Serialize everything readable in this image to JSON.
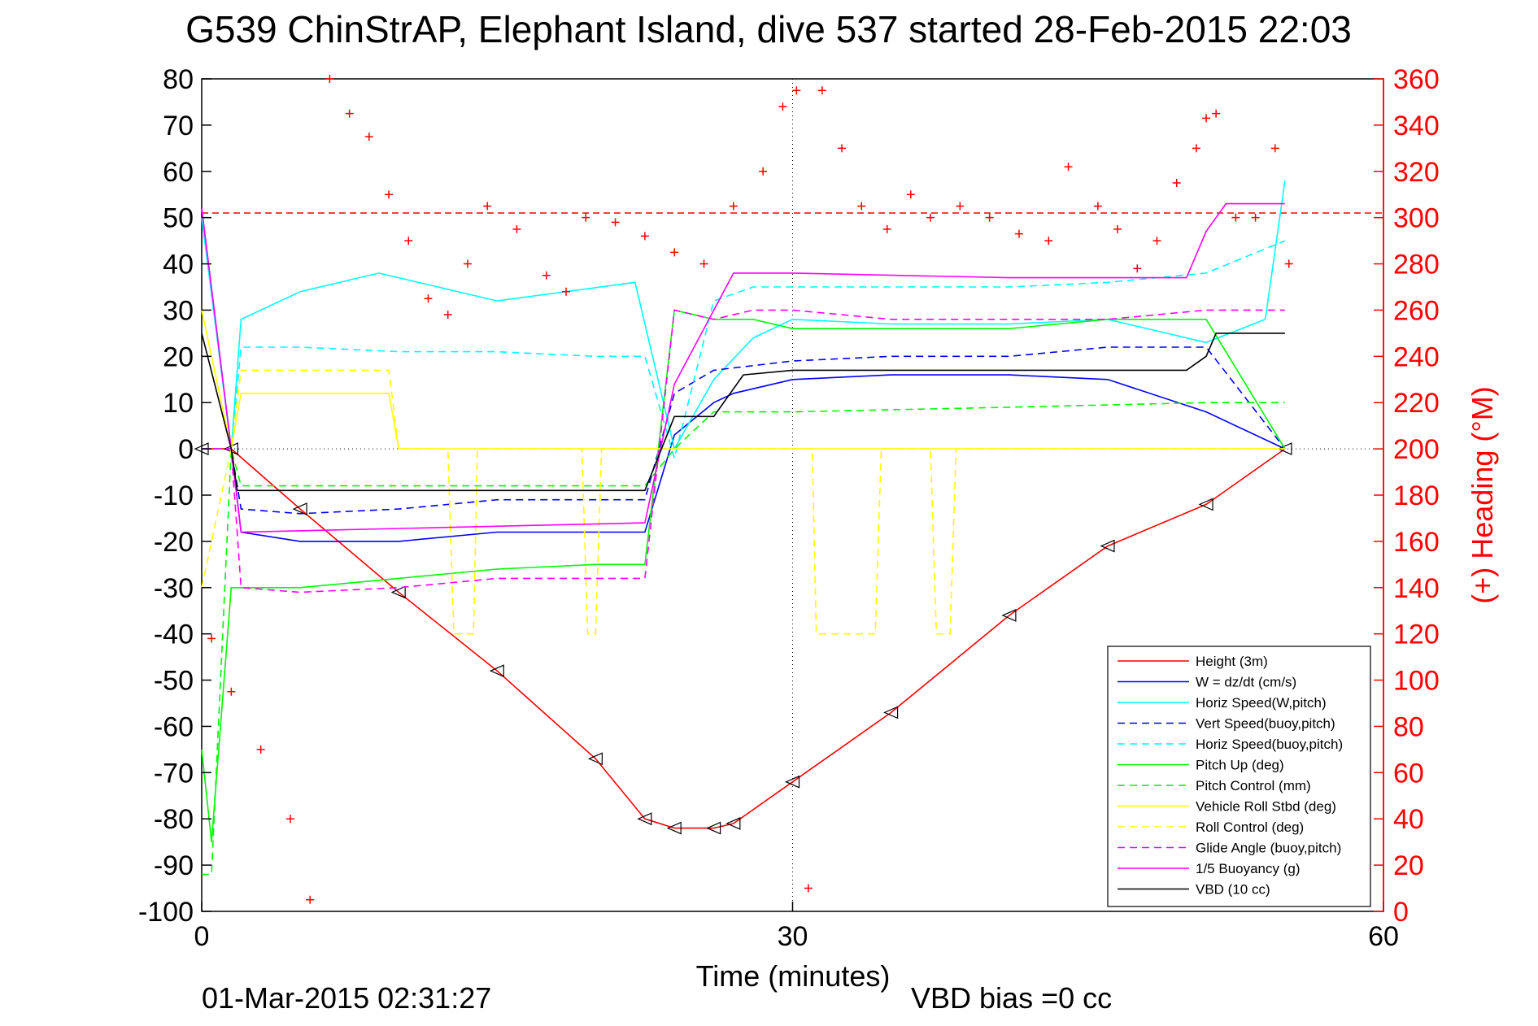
{
  "chart_data": {
    "type": "line",
    "title": "G539 ChinStrAP, Elephant Island, dive 537 started 28-Feb-2015 22:03",
    "xlabel": "Time (minutes)",
    "ylabel_right": "(+) Heading (°M)",
    "footer_left": "01-Mar-2015 02:31:27",
    "footer_center": "VBD bias =0 cc",
    "xlim": [
      0,
      60
    ],
    "ylim": [
      -100,
      80
    ],
    "ylim_right": [
      0,
      360
    ],
    "x_ticks": [
      "0",
      "30",
      "60"
    ],
    "y_ticks": [
      "80",
      "70",
      "60",
      "50",
      "40",
      "30",
      "20",
      "10",
      "0",
      "-10",
      "-20",
      "-30",
      "-40",
      "-50",
      "-60",
      "-70",
      "-80",
      "-90",
      "-100"
    ],
    "y_ticks_right": [
      "360",
      "340",
      "320",
      "300",
      "280",
      "260",
      "240",
      "220",
      "200",
      "180",
      "160",
      "140",
      "120",
      "100",
      "80",
      "60",
      "40",
      "20",
      "0"
    ],
    "heading_reference": 302,
    "colors": {
      "axis_right": "#ff0000",
      "heading": "#ff0000"
    },
    "legend": {
      "position": "bottom-right"
    },
    "series": [
      {
        "name": "Height (3m)",
        "color": "#ff0000",
        "style": "solid",
        "x": [
          0,
          1.5,
          5,
          10,
          15,
          20,
          22.5,
          24,
          26,
          27,
          30,
          35,
          41,
          46,
          51,
          55
        ],
        "y": [
          0,
          0,
          -13,
          -31,
          -48,
          -67,
          -80,
          -82,
          -82,
          -81,
          -72,
          -57,
          -36,
          -21,
          -12,
          0
        ]
      },
      {
        "name": "W = dz/dt (cm/s)",
        "color": "#0000ff",
        "style": "solid",
        "x": [
          0,
          1.5,
          2,
          5,
          10,
          15,
          20,
          22.5,
          24,
          26,
          27,
          30,
          35,
          41,
          46,
          51,
          55
        ],
        "y": [
          52,
          0,
          -18,
          -20,
          -20,
          -18,
          -18,
          -18,
          3,
          10,
          12,
          15,
          16,
          16,
          15,
          8,
          0
        ]
      },
      {
        "name": "Horiz Speed(W,pitch)",
        "color": "#00ffff",
        "style": "solid",
        "x": [
          0,
          1.5,
          2,
          5,
          9,
          15,
          22,
          24,
          26,
          28,
          30,
          35,
          41,
          46,
          51,
          54,
          55
        ],
        "y": [
          50,
          0,
          28,
          34,
          38,
          32,
          36,
          0,
          15,
          24,
          28,
          27,
          27,
          28,
          23,
          28,
          58
        ]
      },
      {
        "name": "Vert Speed(buoy,pitch)",
        "color": "#0000ff",
        "style": "dashed",
        "x": [
          0,
          1.5,
          2,
          5,
          10,
          15,
          20,
          22.5,
          24,
          26,
          28,
          30,
          35,
          41,
          46,
          51,
          55
        ],
        "y": [
          0,
          0,
          -13,
          -14,
          -13,
          -11,
          -11,
          -11,
          12,
          17,
          18,
          19,
          20,
          20,
          22,
          22,
          0
        ]
      },
      {
        "name": "Horiz Speed(buoy,pitch)",
        "color": "#00ffff",
        "style": "dashed",
        "x": [
          0,
          1.5,
          2,
          5,
          10,
          15,
          20,
          22.5,
          24,
          26,
          28,
          30,
          35,
          41,
          46,
          51,
          55
        ],
        "y": [
          0,
          0,
          22,
          22,
          21,
          21,
          20,
          20,
          -2,
          32,
          35,
          35,
          35,
          35,
          36,
          38,
          45
        ]
      },
      {
        "name": "Pitch Up (deg)",
        "color": "#00ff00",
        "style": "solid",
        "x": [
          0,
          0.5,
          1.5,
          2,
          5,
          10,
          15,
          20,
          22.5,
          24,
          26,
          28,
          30,
          35,
          41,
          46,
          51,
          55
        ],
        "y": [
          -65,
          -85,
          -30,
          -30,
          -30,
          -28,
          -26,
          -25,
          -25,
          30,
          28,
          28,
          26,
          26,
          26,
          28,
          28,
          0
        ]
      },
      {
        "name": "Pitch Control (mm)",
        "color": "#00ff00",
        "style": "dashed",
        "x": [
          0,
          0.5,
          1.5,
          2,
          22.5,
          24,
          26,
          30,
          41,
          51,
          55
        ],
        "y": [
          -92,
          -92,
          0,
          -8,
          -8,
          0,
          8,
          8,
          9,
          10,
          10
        ]
      },
      {
        "name": "Vehicle Roll Stbd (deg)",
        "color": "#ffff00",
        "style": "solid",
        "x": [
          0,
          1.5,
          2,
          5,
          9.5,
          10,
          22,
          24,
          30,
          41,
          46,
          51,
          55
        ],
        "y": [
          30,
          0,
          12,
          12,
          12,
          0,
          0,
          0,
          0,
          0,
          0,
          0,
          0
        ]
      },
      {
        "name": "Roll Control (deg)",
        "color": "#ffff00",
        "style": "dashed",
        "x": [
          0,
          1.5,
          2,
          9.5,
          10,
          12.5,
          12.8,
          13.8,
          14,
          19.3,
          19.6,
          20,
          20.3,
          22,
          31,
          31.2,
          34.2,
          34.5,
          37,
          37.3,
          38,
          38.3,
          55
        ],
        "y": [
          -30,
          0,
          17,
          17,
          0,
          0,
          -40,
          -40,
          0,
          0,
          -40,
          -40,
          0,
          0,
          0,
          -40,
          -40,
          0,
          0,
          -40,
          -40,
          0,
          0
        ]
      },
      {
        "name": "Glide Angle (buoy,pitch)",
        "color": "#ff00ff",
        "style": "dashed",
        "x": [
          0,
          1.5,
          2,
          5,
          10,
          15,
          20,
          22.5,
          24,
          26,
          28,
          30,
          35,
          41,
          46,
          51,
          55
        ],
        "y": [
          0,
          0,
          -30,
          -31,
          -30,
          -28,
          -28,
          -28,
          30,
          28,
          30,
          30,
          28,
          28,
          28,
          30,
          30
        ]
      },
      {
        "name": "1/5 Buoyancy (g)",
        "color": "#ff00ff",
        "style": "solid",
        "x": [
          0,
          1.5,
          2,
          22.5,
          24,
          27,
          30,
          41,
          46,
          50,
          51,
          52,
          55
        ],
        "y": [
          52,
          0,
          -18,
          -16,
          14,
          38,
          38,
          37,
          37,
          37,
          47,
          53,
          53
        ]
      },
      {
        "name": "VBD (10 cc)",
        "color": "#000000",
        "style": "solid",
        "x": [
          0,
          1.5,
          1.8,
          22.5,
          24,
          26,
          27.5,
          30,
          41,
          46,
          50,
          51,
          51.5,
          55
        ],
        "y": [
          25,
          0,
          -9,
          -9,
          7,
          7,
          16,
          17,
          17,
          17,
          17,
          20,
          25,
          25
        ]
      },
      {
        "name": "Heading",
        "color": "#ff0000",
        "style": "markers",
        "axis": "right",
        "x": [
          0.5,
          1.5,
          3,
          4.5,
          5.5,
          6.5,
          7.5,
          8.5,
          9.5,
          10.5,
          11.5,
          12.5,
          13.5,
          14.5,
          16,
          17.5,
          18.5,
          19.5,
          21,
          22.5,
          24,
          25.5,
          27,
          28.5,
          29.5,
          30.2,
          30.8,
          31.5,
          32.5,
          33.5,
          34.8,
          36,
          37,
          38.5,
          40,
          41.5,
          43,
          44,
          45.5,
          46.5,
          47.5,
          48.5,
          49.5,
          50.5,
          51,
          51.5,
          52.5,
          53.5,
          54.5,
          55.2
        ],
        "y": [
          118,
          95,
          70,
          40,
          5,
          360,
          345,
          335,
          310,
          290,
          265,
          258,
          280,
          305,
          295,
          275,
          268,
          300,
          298,
          292,
          285,
          280,
          305,
          320,
          348,
          355,
          10,
          355,
          330,
          305,
          295,
          310,
          300,
          305,
          300,
          293,
          290,
          322,
          305,
          295,
          278,
          290,
          315,
          330,
          343,
          345,
          300,
          300,
          330,
          280
        ]
      }
    ]
  }
}
